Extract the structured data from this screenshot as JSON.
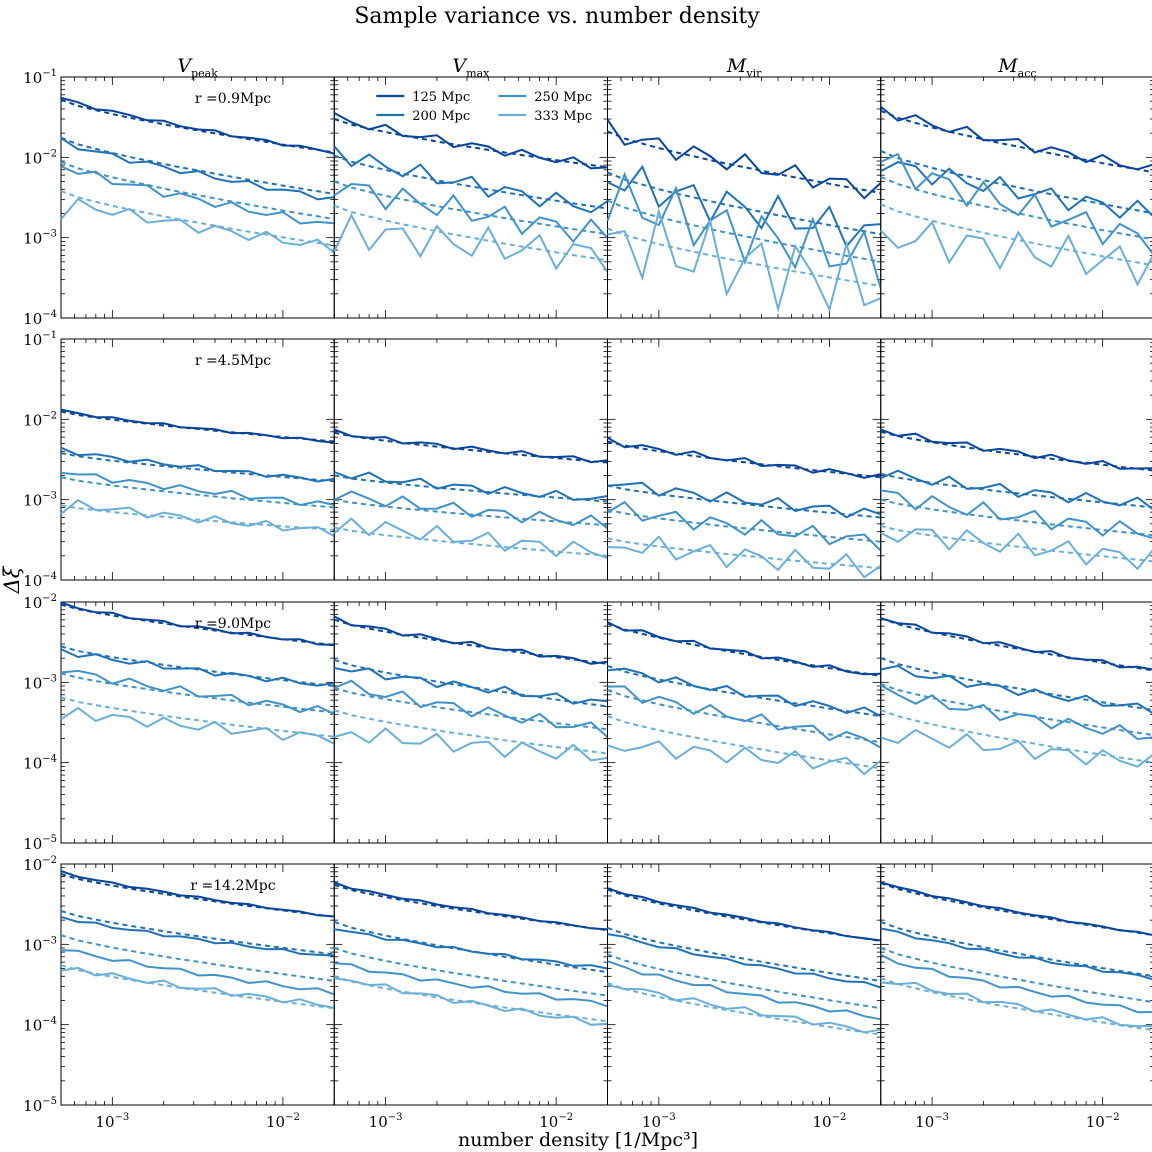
{
  "figure": {
    "title": "Sample variance vs. number density",
    "xlabel": "number density  [1/Mpc³]",
    "ylabel": "Δξ",
    "columns": [
      {
        "base": "V",
        "sub": "peak"
      },
      {
        "base": "V",
        "sub": "max"
      },
      {
        "base": "M",
        "sub": "vir"
      },
      {
        "base": "M",
        "sub": "acc"
      }
    ],
    "rows": [
      {
        "label": "r =0.9Mpc",
        "ylim": [
          0.0001,
          0.1
        ],
        "yticks": [
          {
            "exp": -1
          },
          {
            "exp": -2
          },
          {
            "exp": -3
          },
          {
            "exp": -4
          }
        ]
      },
      {
        "label": "r =4.5Mpc",
        "ylim": [
          0.0001,
          0.1
        ],
        "yticks": [
          {
            "exp": -1
          },
          {
            "exp": -2
          },
          {
            "exp": -3
          },
          {
            "exp": -4
          }
        ]
      },
      {
        "label": "r =9.0Mpc",
        "ylim": [
          1e-05,
          0.01
        ],
        "yticks": [
          {
            "exp": -2
          },
          {
            "exp": -3
          },
          {
            "exp": -4
          },
          {
            "exp": -5
          }
        ]
      },
      {
        "label": "r =14.2Mpc",
        "ylim": [
          1e-05,
          0.01
        ],
        "yticks": [
          {
            "exp": -2
          },
          {
            "exp": -3
          },
          {
            "exp": -4
          },
          {
            "exp": -5
          }
        ]
      }
    ],
    "xticks": [
      {
        "exp": -3
      },
      {
        "exp": -2
      }
    ],
    "tick_base": "10"
  },
  "chart_data": {
    "type": "line",
    "scale": "log-log",
    "xlim": [
      0.0005,
      0.02
    ],
    "x": [
      0.0005,
      0.00063,
      0.0008,
      0.001,
      0.00126,
      0.0016,
      0.002,
      0.0025,
      0.0032,
      0.004,
      0.005,
      0.0063,
      0.008,
      0.01,
      0.0126,
      0.016,
      0.02
    ],
    "legend": {
      "placement": "top, second column panel",
      "entries": [
        "125 Mpc",
        "200 Mpc",
        "250 Mpc",
        "333 Mpc"
      ]
    },
    "series_colors": [
      "#08459a",
      "#2171b5",
      "#4292c6",
      "#6baed6"
    ],
    "line_styles": {
      "measured": "solid",
      "model": "dashed"
    },
    "panels": [
      [
        {
          "start": [
            0.055,
            0.016,
            0.008,
            0.003
          ],
          "end": [
            0.0115,
            0.003,
            0.0014,
            0.00075
          ],
          "model_start": [
            0.052,
            0.0175,
            0.0088,
            0.0038
          ],
          "model_end": [
            0.0115,
            0.0035,
            0.0017,
            0.0008
          ],
          "wiggle": 0.02,
          "fdip": 0.18
        },
        {
          "start": [
            0.032,
            0.012,
            0.0048,
            0.0013
          ],
          "end": [
            0.0075,
            0.0022,
            0.0011,
            0.0006
          ],
          "model_start": [
            0.03,
            0.0105,
            0.005,
            0.0025
          ],
          "model_end": [
            0.0075,
            0.0023,
            0.0011,
            0.00052
          ],
          "wiggle": 0.06,
          "fdip": 0.22
        },
        {
          "start": [
            0.022,
            0.006,
            0.0034,
            0.0011
          ],
          "end": [
            0.0038,
            0.0011,
            0.0005,
            0.00024
          ],
          "model_start": [
            0.021,
            0.0065,
            0.0029,
            0.0013
          ],
          "model_end": [
            0.0036,
            0.0011,
            0.0005,
            0.00025
          ],
          "wiggle": 0.13,
          "fdip": 0.28
        },
        {
          "start": [
            0.04,
            0.009,
            0.0095,
            0.0012
          ],
          "end": [
            0.007,
            0.002,
            0.0009,
            0.00045
          ],
          "model_start": [
            0.038,
            0.012,
            0.0057,
            0.0026
          ],
          "model_end": [
            0.0065,
            0.002,
            0.00095,
            0.00045
          ],
          "wiggle": 0.07,
          "fdip": 0.25
        }
      ],
      [
        {
          "start": [
            0.013,
            0.0042,
            0.0023,
            0.00095
          ],
          "end": [
            0.0052,
            0.0017,
            0.00085,
            0.0004
          ],
          "model_start": [
            0.0125,
            0.0038,
            0.0019,
            0.00085
          ],
          "model_end": [
            0.0053,
            0.0017,
            0.0008,
            0.00042
          ],
          "wiggle": 0.015,
          "fdip": 0.12
        },
        {
          "start": [
            0.007,
            0.0022,
            0.0012,
            0.00055
          ],
          "end": [
            0.003,
            0.001,
            0.0005,
            0.00022
          ],
          "model_start": [
            0.0068,
            0.002,
            0.001,
            0.00045
          ],
          "model_end": [
            0.0029,
            0.00095,
            0.00048,
            0.0002
          ],
          "wiggle": 0.03,
          "fdip": 0.18
        },
        {
          "start": [
            0.0055,
            0.0017,
            0.0008,
            0.0003
          ],
          "end": [
            0.0019,
            0.00065,
            0.0003,
            0.00014
          ],
          "model_start": [
            0.0053,
            0.0015,
            0.00075,
            0.00033
          ],
          "model_end": [
            0.0019,
            0.0006,
            0.0003,
            0.00014
          ],
          "wiggle": 0.04,
          "fdip": 0.2
        },
        {
          "start": [
            0.0075,
            0.0022,
            0.0012,
            0.00045
          ],
          "end": [
            0.0023,
            0.00085,
            0.00038,
            0.00018
          ],
          "model_start": [
            0.007,
            0.0021,
            0.001,
            0.00047
          ],
          "model_end": [
            0.0023,
            0.0008,
            0.00036,
            0.00017
          ],
          "wiggle": 0.04,
          "fdip": 0.2
        }
      ],
      [
        {
          "start": [
            0.0095,
            0.0025,
            0.0015,
            0.00045
          ],
          "end": [
            0.0029,
            0.0009,
            0.00042,
            0.0002
          ],
          "model_start": [
            0.0093,
            0.0028,
            0.0013,
            0.00065
          ],
          "model_end": [
            0.0029,
            0.0009,
            0.00042,
            0.00021
          ],
          "wiggle": 0.02,
          "fdip": 0.1
        },
        {
          "start": [
            0.0062,
            0.0016,
            0.001,
            0.00025
          ],
          "end": [
            0.0017,
            0.00055,
            0.00025,
            0.00012
          ],
          "model_start": [
            0.006,
            0.0019,
            0.00085,
            0.00045
          ],
          "model_end": [
            0.0017,
            0.0005,
            0.00026,
            0.00013
          ],
          "wiggle": 0.03,
          "fdip": 0.15
        },
        {
          "start": [
            0.0055,
            0.0016,
            0.0009,
            0.00018
          ],
          "end": [
            0.0012,
            0.0004,
            0.00018,
            9e-05
          ],
          "model_start": [
            0.0054,
            0.0016,
            0.0008,
            0.00038
          ],
          "model_end": [
            0.0012,
            0.00038,
            0.00018,
            8.5e-05
          ],
          "wiggle": 0.03,
          "fdip": 0.15
        },
        {
          "start": [
            0.0065,
            0.0016,
            0.0008,
            0.00025
          ],
          "end": [
            0.0014,
            0.00046,
            0.00021,
            0.0001
          ],
          "model_start": [
            0.0063,
            0.002,
            0.00095,
            0.00045
          ],
          "model_end": [
            0.0014,
            0.00045,
            0.00022,
            0.0001
          ],
          "wiggle": 0.03,
          "fdip": 0.15
        }
      ],
      [
        {
          "start": [
            0.008,
            0.0022,
            0.0009,
            0.00055
          ],
          "end": [
            0.0022,
            0.0007,
            0.00025,
            0.00017
          ],
          "model_start": [
            0.0075,
            0.0026,
            0.0013,
            0.00055
          ],
          "model_end": [
            0.0022,
            0.00075,
            0.00035,
            0.00016
          ],
          "wiggle": 0.01,
          "fdip": 0.08
        },
        {
          "start": [
            0.0058,
            0.0016,
            0.0006,
            0.00042
          ],
          "end": [
            0.0015,
            0.0005,
            0.00018,
            0.0001
          ],
          "model_start": [
            0.0055,
            0.0019,
            0.0009,
            0.0004
          ],
          "model_end": [
            0.0015,
            0.00045,
            0.00023,
            0.00011
          ],
          "wiggle": 0.01,
          "fdip": 0.08
        },
        {
          "start": [
            0.005,
            0.0014,
            0.0006,
            0.00035
          ],
          "end": [
            0.0011,
            0.0003,
            0.00012,
            8e-05
          ],
          "model_start": [
            0.0048,
            0.0016,
            0.00075,
            0.00033
          ],
          "model_end": [
            0.0011,
            0.00035,
            0.00016,
            7.5e-05
          ],
          "wiggle": 0.01,
          "fdip": 0.08
        },
        {
          "start": [
            0.006,
            0.0016,
            0.0007,
            0.0004
          ],
          "end": [
            0.0013,
            0.00038,
            0.00014,
            9e-05
          ],
          "model_start": [
            0.0058,
            0.0019,
            0.0009,
            0.00038
          ],
          "model_end": [
            0.0013,
            0.0004,
            0.00019,
            8.5e-05
          ],
          "wiggle": 0.01,
          "fdip": 0.08
        }
      ]
    ]
  }
}
